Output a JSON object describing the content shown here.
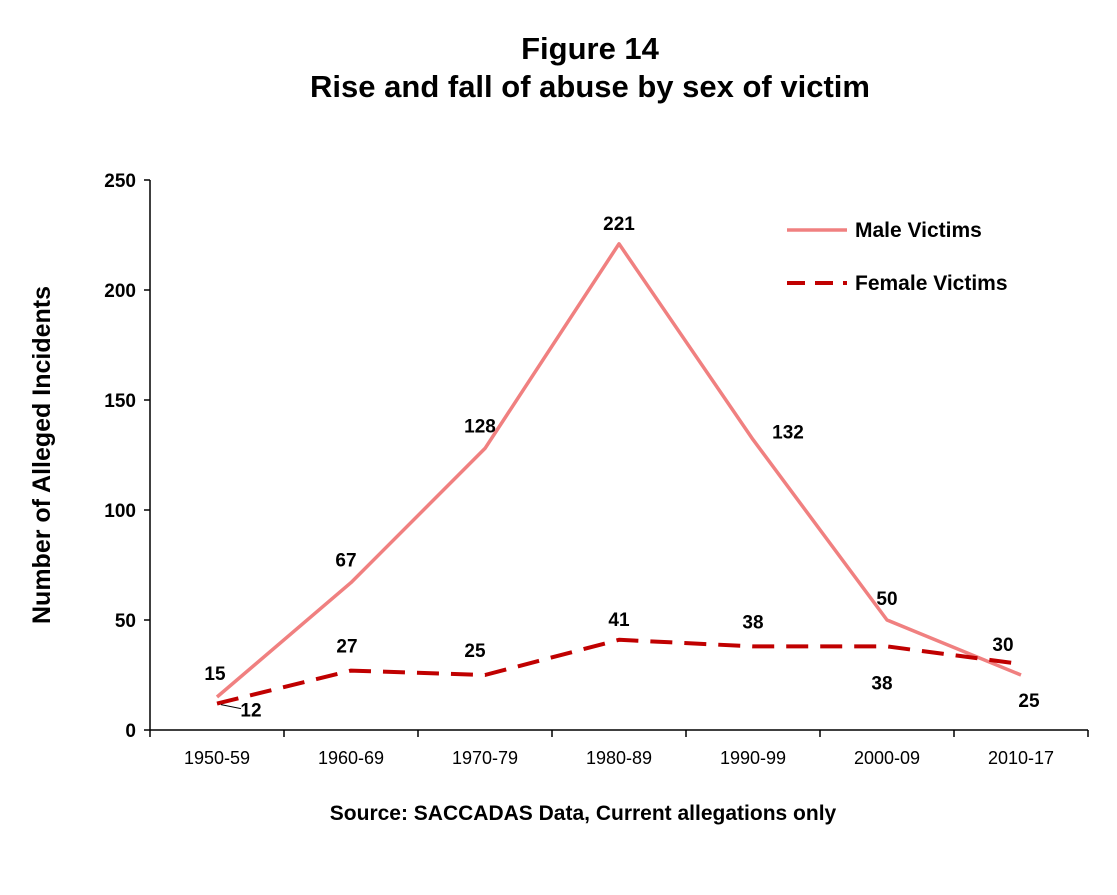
{
  "title": {
    "line1": "Figure 14",
    "line2": "Rise and fall of abuse by sex of victim"
  },
  "source": "Source:  SACCADAS  Data, Current allegations only",
  "chart_data": {
    "type": "line",
    "title": "Rise and fall of abuse by sex of victim",
    "xlabel": "",
    "ylabel": "Number of Alleged Incidents",
    "categories": [
      "1950-59",
      "1960-69",
      "1970-79",
      "1980-89",
      "1990-99",
      "2000-09",
      "2010-17"
    ],
    "ylim": [
      0,
      250
    ],
    "yticks": [
      0,
      50,
      100,
      150,
      200,
      250
    ],
    "grid": false,
    "legend_position": "top-right",
    "series": [
      {
        "name": "Male Victims",
        "values": [
          15,
          67,
          128,
          221,
          132,
          50,
          25
        ],
        "color": "#f08080",
        "style": "solid"
      },
      {
        "name": "Female Victims",
        "values": [
          12,
          27,
          25,
          41,
          38,
          38,
          30
        ],
        "color": "#c00000",
        "style": "dashed"
      }
    ]
  }
}
